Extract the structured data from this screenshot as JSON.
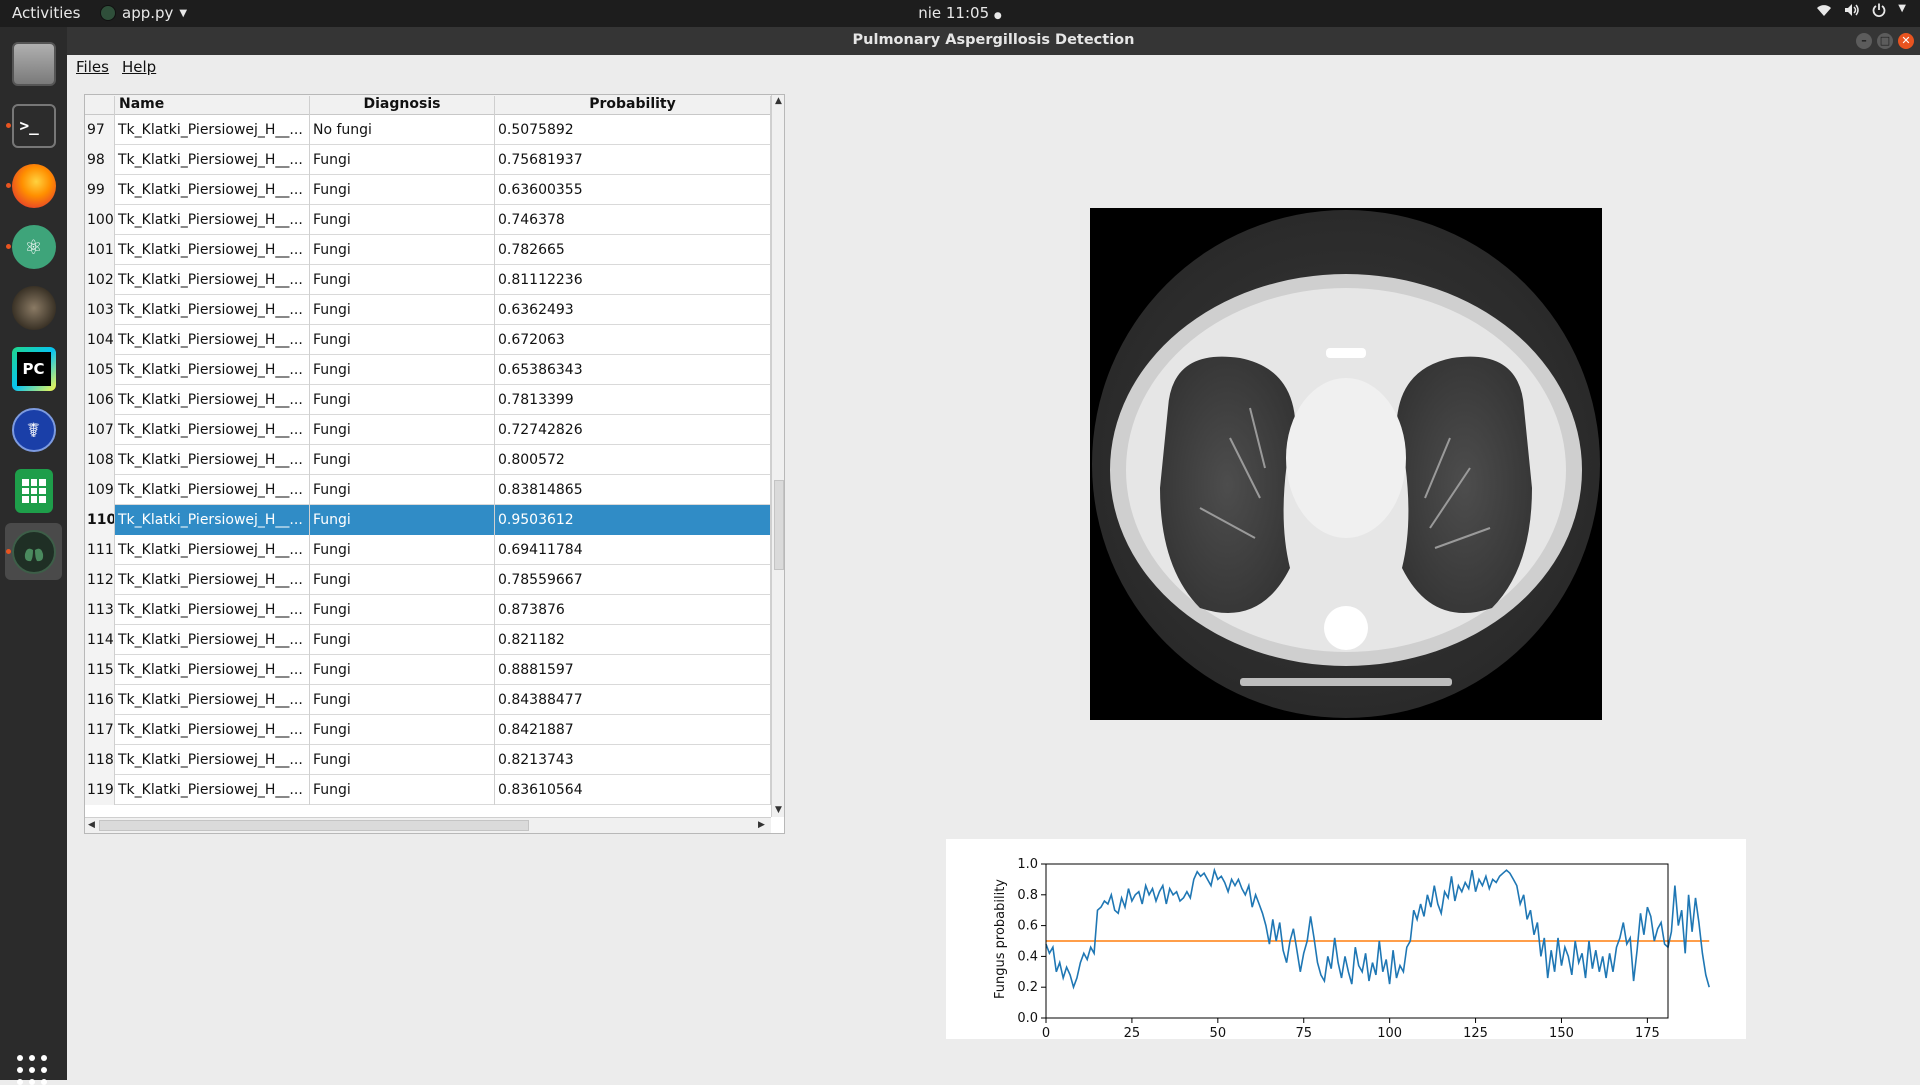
{
  "topbar": {
    "activities": "Activities",
    "app_menu": "app.py",
    "clock": "nie 11:05",
    "tray_icons": [
      "wifi-icon",
      "volume-icon",
      "power-icon",
      "chevron-down-icon"
    ]
  },
  "window": {
    "title": "Pulmonary Aspergillosis Detection"
  },
  "dock": {
    "items": [
      "file-manager",
      "terminal",
      "firefox",
      "atom",
      "gimp",
      "pycharm",
      "caduceus-app",
      "spreadsheet",
      "lung-app"
    ],
    "pycharm_label": "PC"
  },
  "menu": {
    "files": "Files",
    "help": "Help"
  },
  "table": {
    "headers": {
      "name": "Name",
      "diagnosis": "Diagnosis",
      "probability": "Probability"
    },
    "selected_row": "110",
    "rows": [
      {
        "idx": "97",
        "name": "Tk_Klatki_Piersiowej_H__...",
        "diag": "No fungi",
        "prob": "0.5075892"
      },
      {
        "idx": "98",
        "name": "Tk_Klatki_Piersiowej_H__...",
        "diag": "Fungi",
        "prob": "0.75681937"
      },
      {
        "idx": "99",
        "name": "Tk_Klatki_Piersiowej_H__...",
        "diag": "Fungi",
        "prob": "0.63600355"
      },
      {
        "idx": "100",
        "name": "Tk_Klatki_Piersiowej_H__...",
        "diag": "Fungi",
        "prob": "0.746378"
      },
      {
        "idx": "101",
        "name": "Tk_Klatki_Piersiowej_H__...",
        "diag": "Fungi",
        "prob": "0.782665"
      },
      {
        "idx": "102",
        "name": "Tk_Klatki_Piersiowej_H__...",
        "diag": "Fungi",
        "prob": "0.81112236"
      },
      {
        "idx": "103",
        "name": "Tk_Klatki_Piersiowej_H__...",
        "diag": "Fungi",
        "prob": "0.6362493"
      },
      {
        "idx": "104",
        "name": "Tk_Klatki_Piersiowej_H__...",
        "diag": "Fungi",
        "prob": "0.672063"
      },
      {
        "idx": "105",
        "name": "Tk_Klatki_Piersiowej_H__...",
        "diag": "Fungi",
        "prob": "0.65386343"
      },
      {
        "idx": "106",
        "name": "Tk_Klatki_Piersiowej_H__...",
        "diag": "Fungi",
        "prob": "0.7813399"
      },
      {
        "idx": "107",
        "name": "Tk_Klatki_Piersiowej_H__...",
        "diag": "Fungi",
        "prob": "0.72742826"
      },
      {
        "idx": "108",
        "name": "Tk_Klatki_Piersiowej_H__...",
        "diag": "Fungi",
        "prob": "0.800572"
      },
      {
        "idx": "109",
        "name": "Tk_Klatki_Piersiowej_H__...",
        "diag": "Fungi",
        "prob": "0.83814865"
      },
      {
        "idx": "110",
        "name": "Tk_Klatki_Piersiowej_H__...",
        "diag": "Fungi",
        "prob": "0.9503612"
      },
      {
        "idx": "111",
        "name": "Tk_Klatki_Piersiowej_H__...",
        "diag": "Fungi",
        "prob": "0.69411784"
      },
      {
        "idx": "112",
        "name": "Tk_Klatki_Piersiowej_H__...",
        "diag": "Fungi",
        "prob": "0.78559667"
      },
      {
        "idx": "113",
        "name": "Tk_Klatki_Piersiowej_H__...",
        "diag": "Fungi",
        "prob": "0.873876"
      },
      {
        "idx": "114",
        "name": "Tk_Klatki_Piersiowej_H__...",
        "diag": "Fungi",
        "prob": "0.821182"
      },
      {
        "idx": "115",
        "name": "Tk_Klatki_Piersiowej_H__...",
        "diag": "Fungi",
        "prob": "0.8881597"
      },
      {
        "idx": "116",
        "name": "Tk_Klatki_Piersiowej_H__...",
        "diag": "Fungi",
        "prob": "0.84388477"
      },
      {
        "idx": "117",
        "name": "Tk_Klatki_Piersiowej_H__...",
        "diag": "Fungi",
        "prob": "0.8421887"
      },
      {
        "idx": "118",
        "name": "Tk_Klatki_Piersiowej_H__...",
        "diag": "Fungi",
        "prob": "0.8213743"
      },
      {
        "idx": "119",
        "name": "Tk_Klatki_Piersiowej_H__...",
        "diag": "Fungi",
        "prob": "0.83610564"
      }
    ]
  },
  "colors": {
    "selection": "#308cc6",
    "accent": "#e95420",
    "series": "#1f77b4",
    "threshold": "#ff7f0e"
  },
  "chart_data": {
    "type": "line",
    "ylabel": "Fungus probability",
    "xlim": [
      0,
      181
    ],
    "ylim": [
      0,
      1
    ],
    "xticks": [
      0,
      25,
      50,
      75,
      100,
      125,
      150,
      175
    ],
    "yticks": [
      0.0,
      0.2,
      0.4,
      0.6,
      0.8,
      1.0
    ],
    "ytick_labels": [
      "0.0",
      "0.2",
      "0.4",
      "0.6",
      "0.8",
      "1.0"
    ],
    "threshold": 0.5,
    "series": [
      {
        "values": [
          0.48,
          0.42,
          0.46,
          0.3,
          0.36,
          0.26,
          0.33,
          0.28,
          0.2,
          0.26,
          0.36,
          0.42,
          0.38,
          0.46,
          0.42,
          0.7,
          0.72,
          0.76,
          0.74,
          0.8,
          0.7,
          0.68,
          0.78,
          0.72,
          0.84,
          0.76,
          0.8,
          0.82,
          0.74,
          0.86,
          0.8,
          0.84,
          0.76,
          0.82,
          0.86,
          0.74,
          0.84,
          0.8,
          0.82,
          0.76,
          0.78,
          0.82,
          0.78,
          0.9,
          0.95,
          0.92,
          0.94,
          0.9,
          0.86,
          0.96,
          0.9,
          0.92,
          0.88,
          0.82,
          0.9,
          0.86,
          0.9,
          0.84,
          0.8,
          0.86,
          0.72,
          0.8,
          0.74,
          0.68,
          0.6,
          0.48,
          0.64,
          0.5,
          0.62,
          0.44,
          0.36,
          0.5,
          0.58,
          0.44,
          0.3,
          0.42,
          0.5,
          0.66,
          0.52,
          0.36,
          0.28,
          0.24,
          0.4,
          0.32,
          0.52,
          0.36,
          0.26,
          0.4,
          0.3,
          0.22,
          0.46,
          0.34,
          0.3,
          0.42,
          0.24,
          0.36,
          0.28,
          0.5,
          0.3,
          0.38,
          0.22,
          0.44,
          0.26,
          0.34,
          0.3,
          0.46,
          0.5,
          0.7,
          0.64,
          0.74,
          0.66,
          0.8,
          0.72,
          0.86,
          0.74,
          0.68,
          0.82,
          0.78,
          0.92,
          0.76,
          0.86,
          0.82,
          0.88,
          0.84,
          0.96,
          0.82,
          0.9,
          0.86,
          0.92,
          0.84,
          0.9,
          0.88,
          0.92,
          0.94,
          0.96,
          0.94,
          0.9,
          0.86,
          0.74,
          0.8,
          0.64,
          0.7,
          0.54,
          0.62,
          0.4,
          0.52,
          0.26,
          0.44,
          0.3,
          0.52,
          0.34,
          0.46,
          0.4,
          0.28,
          0.5,
          0.36,
          0.42,
          0.26,
          0.5,
          0.32,
          0.44,
          0.3,
          0.4,
          0.26,
          0.42,
          0.3,
          0.46,
          0.52,
          0.62,
          0.48,
          0.52,
          0.24,
          0.44,
          0.68,
          0.54,
          0.72,
          0.66,
          0.5,
          0.58,
          0.62,
          0.48,
          0.46,
          0.56,
          0.86,
          0.6,
          0.7,
          0.42,
          0.8,
          0.56,
          0.78,
          0.62,
          0.42,
          0.28,
          0.2
        ]
      }
    ]
  }
}
